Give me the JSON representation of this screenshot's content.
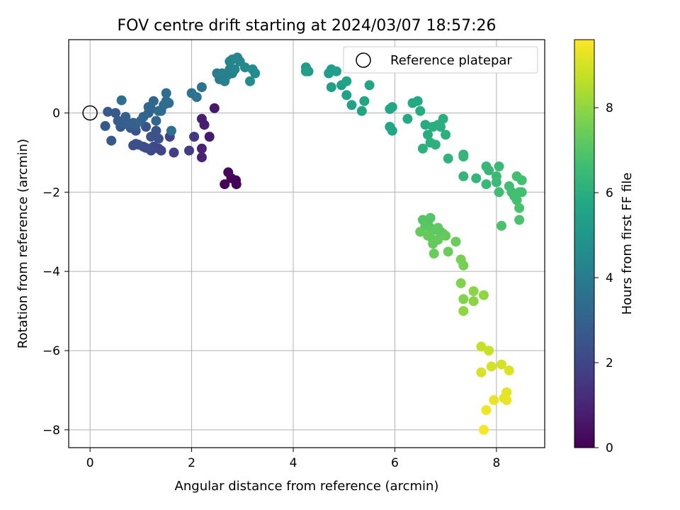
{
  "chart_data": {
    "type": "scatter",
    "title": "FOV centre drift starting at 2024/03/07 18:57:26",
    "xlabel": "Angular distance from reference (arcmin)",
    "ylabel": "Rotation from reference (arcmin)",
    "xlim": [
      -0.42,
      8.95
    ],
    "ylim": [
      -8.45,
      1.85
    ],
    "xticks": [
      0,
      2,
      4,
      6,
      8
    ],
    "yticks": [
      0,
      -2,
      -4,
      -6,
      -8
    ],
    "grid": true,
    "legend": {
      "position": "top-right",
      "label": "Reference platepar"
    },
    "reference_point": {
      "x": 0,
      "y": 0
    },
    "colorbar": {
      "label": "Hours from first FF file",
      "range": [
        0,
        9.6
      ],
      "ticks": [
        0,
        2,
        4,
        6,
        8
      ],
      "colormap": "viridis"
    },
    "series": [
      {
        "points": [
          [
            2.65,
            -1.8,
            0.1
          ],
          [
            2.88,
            -1.8,
            0.1
          ],
          [
            2.78,
            -1.65,
            0.15
          ],
          [
            2.87,
            -1.7,
            0.1
          ],
          [
            2.72,
            -1.5,
            0.2
          ],
          [
            2.45,
            0.12,
            0.6
          ],
          [
            2.35,
            -0.6,
            0.7
          ],
          [
            2.25,
            -0.3,
            0.8
          ],
          [
            2.2,
            -0.15,
            0.8
          ],
          [
            2.2,
            -0.9,
            0.9
          ],
          [
            2.2,
            -1.12,
            0.9
          ],
          [
            2.05,
            -0.6,
            1.6
          ],
          [
            1.95,
            -0.95,
            1.7
          ],
          [
            1.65,
            -1.0,
            1.8
          ],
          [
            1.57,
            -0.6,
            1.9
          ],
          [
            1.4,
            -0.95,
            2.0
          ],
          [
            1.35,
            -0.9,
            2.0
          ],
          [
            1.25,
            -0.85,
            2.1
          ],
          [
            1.2,
            -0.95,
            2.1
          ],
          [
            1.1,
            -0.88,
            2.2
          ],
          [
            1.05,
            -0.85,
            2.2
          ],
          [
            0.9,
            -0.78,
            2.3
          ],
          [
            0.85,
            -0.82,
            2.3
          ],
          [
            0.95,
            -0.8,
            2.3
          ],
          [
            1.2,
            -0.6,
            2.4
          ],
          [
            1.35,
            -0.65,
            2.4
          ],
          [
            1.3,
            -0.45,
            2.5
          ],
          [
            1.1,
            -0.35,
            2.5
          ],
          [
            0.9,
            -0.45,
            2.5
          ],
          [
            0.8,
            -0.38,
            2.6
          ],
          [
            0.6,
            -0.35,
            2.6
          ],
          [
            0.42,
            -0.7,
            2.6
          ],
          [
            0.3,
            -0.33,
            2.7
          ],
          [
            0.35,
            0.03,
            2.7
          ],
          [
            0.5,
            0.0,
            2.7
          ],
          [
            0.55,
            -0.2,
            2.8
          ],
          [
            0.62,
            -0.25,
            2.8
          ],
          [
            0.7,
            -0.1,
            2.9
          ],
          [
            0.75,
            -0.3,
            2.9
          ],
          [
            0.85,
            -0.25,
            3.0
          ],
          [
            0.9,
            -0.3,
            3.0
          ],
          [
            1.0,
            -0.2,
            3.0
          ],
          [
            1.05,
            -0.1,
            3.1
          ],
          [
            1.15,
            0.0,
            3.1
          ],
          [
            1.2,
            0.1,
            3.1
          ],
          [
            1.15,
            0.15,
            3.2
          ],
          [
            1.25,
            0.3,
            3.2
          ],
          [
            1.3,
            -0.2,
            3.2
          ],
          [
            1.35,
            0.05,
            3.3
          ],
          [
            1.4,
            0.05,
            3.3
          ],
          [
            1.45,
            0.2,
            3.4
          ],
          [
            1.5,
            0.3,
            3.4
          ],
          [
            1.55,
            0.25,
            3.4
          ],
          [
            1.5,
            0.5,
            3.4
          ],
          [
            0.62,
            0.32,
            3.5
          ],
          [
            1.6,
            -0.45,
            3.5
          ],
          [
            2.0,
            0.5,
            3.6
          ],
          [
            2.1,
            0.4,
            3.6
          ],
          [
            2.2,
            0.65,
            3.6
          ],
          [
            2.5,
            1.0,
            4.0
          ],
          [
            2.55,
            0.85,
            4.0
          ],
          [
            2.6,
            1.0,
            4.1
          ],
          [
            2.65,
            0.8,
            4.1
          ],
          [
            2.7,
            0.95,
            4.1
          ],
          [
            2.75,
            1.1,
            4.2
          ],
          [
            2.8,
            1.0,
            4.2
          ],
          [
            2.85,
            1.1,
            4.3
          ],
          [
            2.75,
            1.3,
            4.3
          ],
          [
            2.8,
            1.35,
            4.3
          ],
          [
            2.9,
            1.4,
            4.4
          ],
          [
            2.95,
            1.3,
            4.4
          ],
          [
            3.05,
            1.15,
            4.5
          ],
          [
            3.15,
            0.8,
            4.6
          ],
          [
            3.25,
            1.0,
            4.6
          ],
          [
            3.2,
            1.1,
            4.6
          ],
          [
            4.25,
            1.15,
            5.2
          ],
          [
            4.3,
            1.05,
            5.2
          ],
          [
            4.25,
            1.05,
            5.3
          ],
          [
            4.7,
            1.0,
            5.3
          ],
          [
            4.75,
            1.1,
            5.3
          ],
          [
            4.85,
            1.05,
            5.4
          ],
          [
            4.75,
            0.65,
            5.4
          ],
          [
            4.95,
            0.7,
            5.4
          ],
          [
            5.05,
            0.8,
            5.5
          ],
          [
            5.05,
            0.45,
            5.5
          ],
          [
            5.15,
            0.2,
            5.5
          ],
          [
            5.4,
            0.3,
            5.6
          ],
          [
            5.35,
            0.05,
            5.6
          ],
          [
            5.5,
            0.7,
            5.6
          ],
          [
            5.9,
            0.1,
            5.7
          ],
          [
            5.95,
            0.15,
            5.7
          ],
          [
            5.9,
            -0.35,
            5.7
          ],
          [
            5.95,
            -0.45,
            5.7
          ],
          [
            6.25,
            -0.15,
            5.8
          ],
          [
            6.35,
            0.25,
            5.8
          ],
          [
            6.45,
            0.3,
            5.8
          ],
          [
            6.5,
            0.05,
            5.9
          ],
          [
            6.6,
            -0.3,
            5.9
          ],
          [
            6.65,
            -0.55,
            5.9
          ],
          [
            6.75,
            -0.35,
            6.0
          ],
          [
            6.85,
            -0.3,
            6.0
          ],
          [
            6.9,
            -0.35,
            6.0
          ],
          [
            6.95,
            -0.15,
            6.0
          ],
          [
            7.0,
            -0.55,
            6.1
          ],
          [
            6.7,
            -0.75,
            6.1
          ],
          [
            6.8,
            -0.8,
            6.1
          ],
          [
            6.55,
            -0.9,
            6.1
          ],
          [
            7.05,
            -1.15,
            6.2
          ],
          [
            7.35,
            -1.05,
            6.2
          ],
          [
            7.35,
            -1.1,
            6.3
          ],
          [
            7.35,
            -1.6,
            6.3
          ],
          [
            7.6,
            -1.65,
            6.3
          ],
          [
            7.8,
            -1.35,
            6.4
          ],
          [
            7.85,
            -1.45,
            6.4
          ],
          [
            7.8,
            -1.8,
            6.4
          ],
          [
            8.0,
            -1.6,
            6.5
          ],
          [
            8.05,
            -1.35,
            6.5
          ],
          [
            8.0,
            -1.75,
            6.5
          ],
          [
            8.05,
            -2.0,
            6.6
          ],
          [
            8.25,
            -1.85,
            6.6
          ],
          [
            8.3,
            -2.0,
            6.6
          ],
          [
            8.35,
            -2.1,
            6.7
          ],
          [
            8.4,
            -2.2,
            6.7
          ],
          [
            8.45,
            -2.0,
            6.7
          ],
          [
            8.4,
            -1.6,
            6.7
          ],
          [
            8.5,
            -1.7,
            6.7
          ],
          [
            8.5,
            -2.0,
            6.7
          ],
          [
            8.45,
            -2.4,
            6.8
          ],
          [
            8.45,
            -2.7,
            6.8
          ],
          [
            8.1,
            -2.85,
            6.8
          ],
          [
            6.55,
            -2.7,
            7.0
          ],
          [
            6.7,
            -2.65,
            7.0
          ],
          [
            6.65,
            -2.8,
            7.0
          ],
          [
            6.6,
            -2.85,
            7.1
          ],
          [
            6.7,
            -2.9,
            7.1
          ],
          [
            6.8,
            -2.95,
            7.1
          ],
          [
            6.85,
            -2.9,
            7.2
          ],
          [
            6.9,
            -3.0,
            7.2
          ],
          [
            6.95,
            -3.05,
            7.2
          ],
          [
            6.7,
            -3.0,
            7.2
          ],
          [
            6.75,
            -3.2,
            7.3
          ],
          [
            6.75,
            -3.3,
            7.3
          ],
          [
            6.5,
            -3.0,
            7.3
          ],
          [
            6.65,
            -3.1,
            7.3
          ],
          [
            6.85,
            -3.2,
            7.3
          ],
          [
            7.0,
            -3.1,
            7.3
          ],
          [
            7.2,
            -3.25,
            7.4
          ],
          [
            7.05,
            -3.5,
            7.4
          ],
          [
            6.77,
            -3.55,
            7.4
          ],
          [
            7.3,
            -3.7,
            7.6
          ],
          [
            7.35,
            -3.85,
            7.6
          ],
          [
            7.3,
            -4.3,
            7.8
          ],
          [
            7.35,
            -4.7,
            7.8
          ],
          [
            7.55,
            -4.5,
            7.9
          ],
          [
            7.55,
            -4.75,
            7.9
          ],
          [
            7.75,
            -4.6,
            8.0
          ],
          [
            7.35,
            -5.0,
            8.0
          ],
          [
            7.7,
            -5.9,
            8.8
          ],
          [
            7.85,
            -6.0,
            8.8
          ],
          [
            7.9,
            -6.4,
            9.0
          ],
          [
            8.1,
            -6.35,
            9.0
          ],
          [
            7.7,
            -6.55,
            9.0
          ],
          [
            8.25,
            -6.5,
            9.1
          ],
          [
            8.2,
            -7.05,
            9.2
          ],
          [
            8.15,
            -7.2,
            9.2
          ],
          [
            8.2,
            -7.25,
            9.3
          ],
          [
            7.95,
            -7.25,
            9.3
          ],
          [
            7.8,
            -7.5,
            9.4
          ],
          [
            7.75,
            -8.0,
            9.5
          ]
        ]
      }
    ]
  }
}
